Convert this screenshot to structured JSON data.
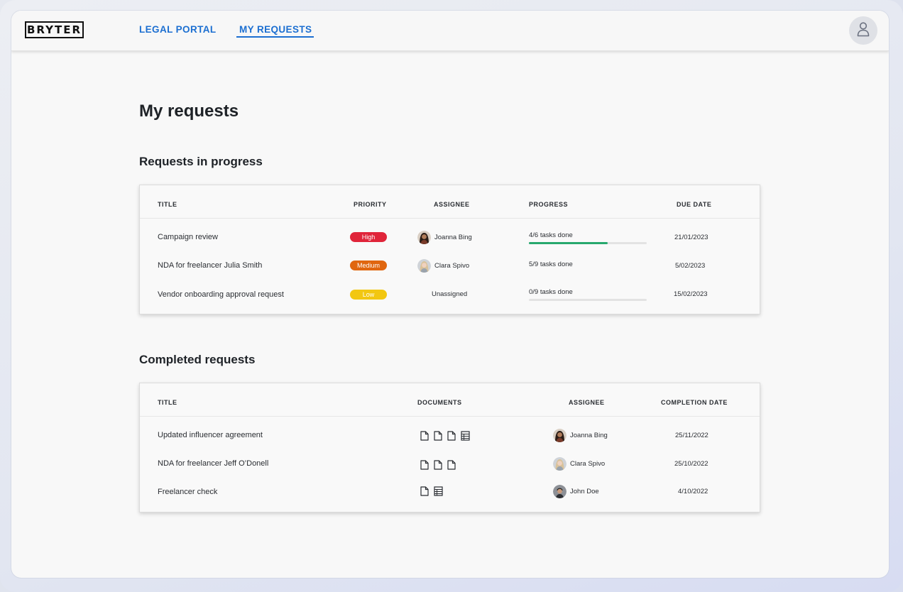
{
  "app": {
    "logo": "BRYTER"
  },
  "nav": {
    "items": [
      {
        "label": "LEGAL PORTAL"
      },
      {
        "label": "MY REQUESTS"
      }
    ],
    "active_color": "#1c6fd1"
  },
  "header": {
    "account_icon": "user-icon"
  },
  "page": {
    "title": "My requests"
  },
  "in_progress": {
    "title": "Requests in progress",
    "columns": [
      "TITLE",
      "PRIORITY",
      "ASSIGNEE",
      "PROGRESS",
      "DUE DATE"
    ],
    "rows": [
      {
        "title": "Campaign review",
        "priority": "High",
        "priority_color": "#e0253a",
        "assignee": "Joanna Bing",
        "progress_text": "4/6 tasks done",
        "progress": 0.667,
        "due": "21/01/2023"
      },
      {
        "title": "NDA for freelancer Julia Smith",
        "priority": "Medium",
        "priority_color": "#e0660f",
        "assignee": "Clara Spivo",
        "progress_text": "5/9 tasks done",
        "progress": null,
        "due": "5/02/2023"
      },
      {
        "title": "Vendor onboarding approval request",
        "priority": "Low",
        "priority_color": "#f2c711",
        "assignee": "Unassigned",
        "progress_text": "0/9 tasks done",
        "progress": 0,
        "due": "15/02/2023"
      }
    ]
  },
  "completed": {
    "title": "Completed requests",
    "columns": [
      "TITLE",
      "DOCUMENTS",
      "ASSIGNEE",
      "COMPLETION DATE"
    ],
    "rows": [
      {
        "title": "Updated influencer agreement",
        "documents": [
          "document-icon",
          "document-icon",
          "document-icon",
          "spreadsheet-icon"
        ],
        "assignee": "Joanna Bing",
        "date": "25/11/2022"
      },
      {
        "title": "NDA for freelancer Jeff O’Donell",
        "documents": [
          "document-icon",
          "document-icon",
          "document-icon"
        ],
        "assignee": "Clara Spivo",
        "date": "25/10/2022"
      },
      {
        "title": "Freelancer check",
        "documents": [
          "document-icon",
          "spreadsheet-icon"
        ],
        "assignee": "John Doe",
        "date": "4/10/2022"
      }
    ]
  }
}
